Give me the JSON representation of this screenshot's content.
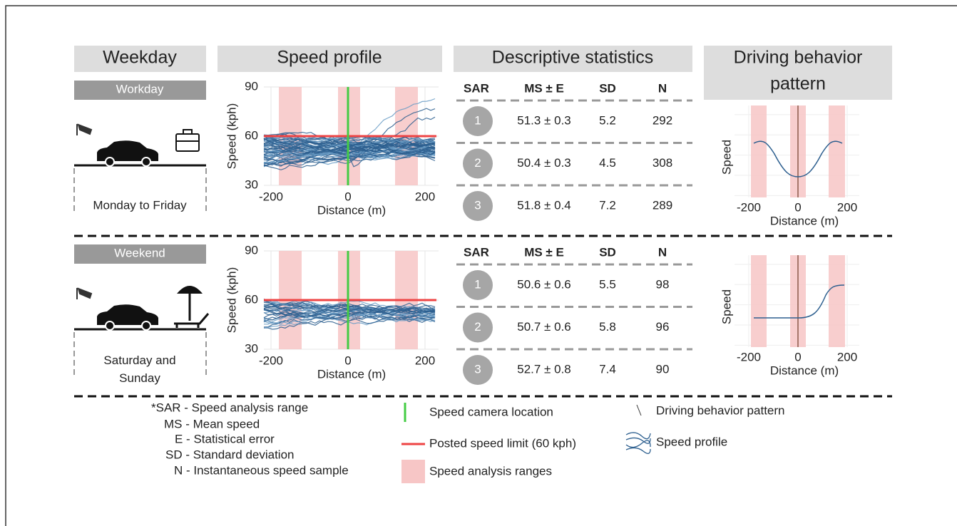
{
  "headers": [
    "Weekday",
    "Speed profile",
    "Descriptive statistics",
    "Driving behavior",
    "pattern"
  ],
  "rows": [
    {
      "day_type": "Workday",
      "days": [
        "Monday to Friday"
      ],
      "speed_profile": {
        "y_label": "Speed (kph)",
        "x_label": "Distance (m)",
        "yticks": [
          30,
          60,
          90
        ],
        "xticks": [
          -200,
          0,
          200
        ],
        "speed_limit": 60
      },
      "stats": {
        "columns": [
          "SAR",
          "MS ± E",
          "SD",
          "N"
        ],
        "rows": [
          [
            1,
            "51.3 ± 0.3",
            5.2,
            292
          ],
          [
            2,
            "50.4 ± 0.3",
            4.5,
            308
          ],
          [
            3,
            "51.8 ± 0.4",
            7.2,
            289
          ]
        ]
      },
      "pattern": {
        "y_label": "Speed",
        "x_label": "Distance (m)",
        "xticks": [
          -200,
          0,
          200
        ]
      }
    },
    {
      "day_type": "Weekend",
      "days": [
        "Saturday and",
        "Sunday"
      ],
      "speed_profile": {
        "y_label": "Speed (kph)",
        "x_label": "Distance (m)",
        "yticks": [
          30,
          60,
          90
        ],
        "xticks": [
          -200,
          0,
          200
        ],
        "speed_limit": 60
      },
      "stats": {
        "columns": [
          "SAR",
          "MS ± E",
          "SD",
          "N"
        ],
        "rows": [
          [
            1,
            "50.6 ± 0.6",
            5.5,
            98
          ],
          [
            2,
            "50.7 ± 0.6",
            5.8,
            96
          ],
          [
            3,
            "52.7 ± 0.8",
            7.4,
            90
          ]
        ]
      },
      "pattern": {
        "y_label": "Speed",
        "x_label": "Distance (m)",
        "xticks": [
          -200,
          0,
          200
        ]
      }
    }
  ],
  "legend": {
    "abbreviations": [
      "*SAR - Speed analysis range",
      "MS - Mean speed",
      "E - Statistical error",
      "SD - Standard deviation",
      "N - Instantaneous speed sample"
    ],
    "camera": "Speed camera location",
    "speed_limit": "Posted speed limit (60 kph)",
    "ranges": "Speed analysis ranges",
    "pattern": "Driving behavior pattern",
    "profile": "Speed profile"
  }
}
